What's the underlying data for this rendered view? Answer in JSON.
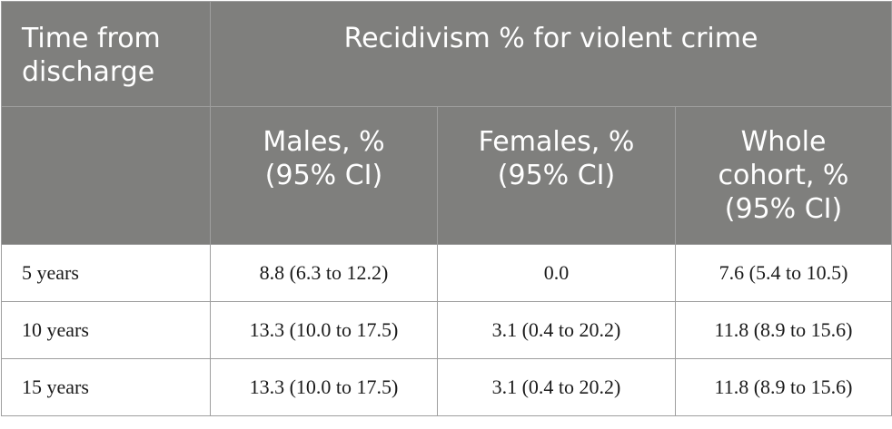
{
  "table": {
    "header_row1": {
      "row_label": "Time from\ndischarge",
      "group_label": "Recidivism % for violent crime"
    },
    "header_row2": [
      "Males, %\n(95% CI)",
      "Females, %\n(95% CI)",
      "Whole\ncohort, %\n(95% CI)"
    ],
    "rows": [
      {
        "time": "5 years",
        "males": "8.8 (6.3 to 12.2)",
        "females": "0.0",
        "whole": "7.6 (5.4 to 10.5)"
      },
      {
        "time": "10 years",
        "males": "13.3 (10.0 to 17.5)",
        "females": "3.1 (0.4 to 20.2)",
        "whole": "11.8 (8.9 to 15.6)"
      },
      {
        "time": "15 years",
        "males": "13.3 (10.0 to 17.5)",
        "females": "3.1 (0.4 to 20.2)",
        "whole": "11.8 (8.9 to 15.6)"
      }
    ]
  }
}
